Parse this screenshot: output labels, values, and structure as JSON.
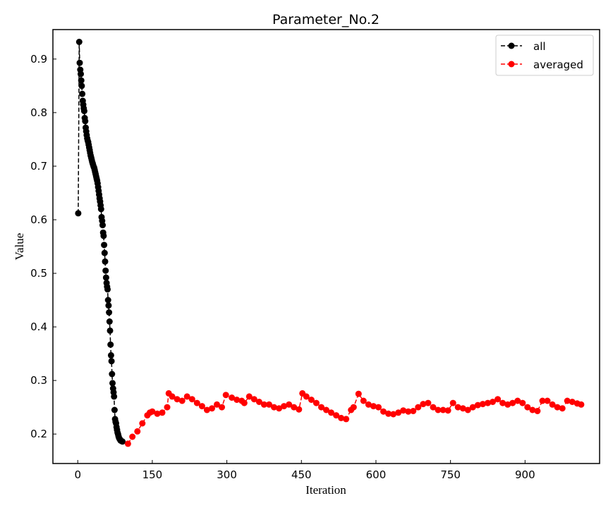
{
  "chart_data": {
    "type": "line",
    "title": "Parameter_No.2",
    "xlabel": "Iteration",
    "ylabel": "Value",
    "xlim": [
      -50,
      1050
    ],
    "ylim": [
      0.145,
      0.955
    ],
    "xticks": [
      0,
      150,
      300,
      450,
      600,
      750,
      900
    ],
    "yticks": [
      0.2,
      0.3,
      0.4,
      0.5,
      0.6,
      0.7,
      0.8,
      0.9
    ],
    "legend_position": "top-right",
    "grid": false,
    "series": [
      {
        "name": "all",
        "color": "#000000",
        "linestyle": "dashed",
        "marker": "circle",
        "points": [
          [
            1,
            0.612
          ],
          [
            3,
            0.932
          ],
          [
            4,
            0.893
          ],
          [
            5,
            0.88
          ],
          [
            6,
            0.872
          ],
          [
            7,
            0.86
          ],
          [
            8,
            0.85
          ],
          [
            9,
            0.835
          ],
          [
            10,
            0.822
          ],
          [
            11,
            0.815
          ],
          [
            12,
            0.808
          ],
          [
            13,
            0.803
          ],
          [
            14,
            0.79
          ],
          [
            15,
            0.784
          ],
          [
            16,
            0.772
          ],
          [
            17,
            0.765
          ],
          [
            18,
            0.758
          ],
          [
            19,
            0.752
          ],
          [
            20,
            0.748
          ],
          [
            21,
            0.745
          ],
          [
            22,
            0.74
          ],
          [
            23,
            0.735
          ],
          [
            24,
            0.73
          ],
          [
            25,
            0.725
          ],
          [
            26,
            0.72
          ],
          [
            27,
            0.716
          ],
          [
            28,
            0.712
          ],
          [
            29,
            0.708
          ],
          [
            30,
            0.705
          ],
          [
            31,
            0.702
          ],
          [
            32,
            0.699
          ],
          [
            33,
            0.697
          ],
          [
            34,
            0.693
          ],
          [
            35,
            0.689
          ],
          [
            36,
            0.685
          ],
          [
            37,
            0.681
          ],
          [
            38,
            0.677
          ],
          [
            39,
            0.673
          ],
          [
            40,
            0.668
          ],
          [
            41,
            0.661
          ],
          [
            42,
            0.654
          ],
          [
            43,
            0.647
          ],
          [
            44,
            0.64
          ],
          [
            45,
            0.634
          ],
          [
            46,
            0.627
          ],
          [
            47,
            0.62
          ],
          [
            48,
            0.605
          ],
          [
            49,
            0.598
          ],
          [
            50,
            0.59
          ],
          [
            51,
            0.576
          ],
          [
            52,
            0.57
          ],
          [
            53,
            0.553
          ],
          [
            54,
            0.538
          ],
          [
            55,
            0.522
          ],
          [
            56,
            0.505
          ],
          [
            57,
            0.492
          ],
          [
            58,
            0.482
          ],
          [
            59,
            0.475
          ],
          [
            60,
            0.47
          ],
          [
            61,
            0.45
          ],
          [
            62,
            0.44
          ],
          [
            63,
            0.427
          ],
          [
            64,
            0.41
          ],
          [
            65,
            0.393
          ],
          [
            66,
            0.367
          ],
          [
            67,
            0.347
          ],
          [
            68,
            0.336
          ],
          [
            69,
            0.312
          ],
          [
            70,
            0.295
          ],
          [
            71,
            0.285
          ],
          [
            72,
            0.278
          ],
          [
            73,
            0.27
          ],
          [
            74,
            0.245
          ],
          [
            75,
            0.228
          ],
          [
            76,
            0.223
          ],
          [
            77,
            0.22
          ],
          [
            78,
            0.213
          ],
          [
            79,
            0.208
          ],
          [
            80,
            0.203
          ],
          [
            81,
            0.2
          ],
          [
            82,
            0.196
          ],
          [
            83,
            0.193
          ],
          [
            84,
            0.191
          ],
          [
            85,
            0.19
          ],
          [
            86,
            0.188
          ],
          [
            88,
            0.187
          ],
          [
            90,
            0.186
          ]
        ]
      },
      {
        "name": "averaged",
        "color": "#ff0000",
        "linestyle": "dashed",
        "marker": "circle",
        "points": [
          [
            101,
            0.182
          ],
          [
            110,
            0.195
          ],
          [
            120,
            0.205
          ],
          [
            130,
            0.22
          ],
          [
            140,
            0.235
          ],
          [
            145,
            0.24
          ],
          [
            150,
            0.242
          ],
          [
            160,
            0.238
          ],
          [
            170,
            0.24
          ],
          [
            180,
            0.25
          ],
          [
            183,
            0.276
          ],
          [
            190,
            0.27
          ],
          [
            200,
            0.265
          ],
          [
            210,
            0.262
          ],
          [
            220,
            0.27
          ],
          [
            230,
            0.265
          ],
          [
            240,
            0.258
          ],
          [
            250,
            0.252
          ],
          [
            260,
            0.245
          ],
          [
            270,
            0.248
          ],
          [
            280,
            0.255
          ],
          [
            290,
            0.25
          ],
          [
            298,
            0.273
          ],
          [
            310,
            0.268
          ],
          [
            320,
            0.264
          ],
          [
            330,
            0.262
          ],
          [
            335,
            0.258
          ],
          [
            345,
            0.27
          ],
          [
            355,
            0.265
          ],
          [
            365,
            0.26
          ],
          [
            375,
            0.255
          ],
          [
            385,
            0.255
          ],
          [
            395,
            0.25
          ],
          [
            405,
            0.248
          ],
          [
            415,
            0.252
          ],
          [
            425,
            0.255
          ],
          [
            435,
            0.25
          ],
          [
            445,
            0.246
          ],
          [
            452,
            0.276
          ],
          [
            460,
            0.27
          ],
          [
            470,
            0.264
          ],
          [
            480,
            0.258
          ],
          [
            490,
            0.25
          ],
          [
            500,
            0.245
          ],
          [
            510,
            0.24
          ],
          [
            520,
            0.235
          ],
          [
            530,
            0.23
          ],
          [
            540,
            0.228
          ],
          [
            550,
            0.245
          ],
          [
            555,
            0.25
          ],
          [
            565,
            0.275
          ],
          [
            575,
            0.262
          ],
          [
            585,
            0.255
          ],
          [
            595,
            0.252
          ],
          [
            605,
            0.25
          ],
          [
            615,
            0.242
          ],
          [
            625,
            0.238
          ],
          [
            635,
            0.237
          ],
          [
            645,
            0.24
          ],
          [
            655,
            0.244
          ],
          [
            665,
            0.242
          ],
          [
            675,
            0.243
          ],
          [
            685,
            0.25
          ],
          [
            695,
            0.256
          ],
          [
            705,
            0.258
          ],
          [
            715,
            0.25
          ],
          [
            725,
            0.245
          ],
          [
            735,
            0.245
          ],
          [
            745,
            0.244
          ],
          [
            755,
            0.258
          ],
          [
            765,
            0.25
          ],
          [
            775,
            0.248
          ],
          [
            785,
            0.245
          ],
          [
            795,
            0.25
          ],
          [
            805,
            0.254
          ],
          [
            815,
            0.256
          ],
          [
            825,
            0.258
          ],
          [
            835,
            0.26
          ],
          [
            845,
            0.265
          ],
          [
            855,
            0.258
          ],
          [
            865,
            0.255
          ],
          [
            875,
            0.258
          ],
          [
            885,
            0.262
          ],
          [
            895,
            0.258
          ],
          [
            905,
            0.25
          ],
          [
            915,
            0.245
          ],
          [
            925,
            0.243
          ],
          [
            935,
            0.262
          ],
          [
            945,
            0.262
          ],
          [
            955,
            0.255
          ],
          [
            965,
            0.25
          ],
          [
            975,
            0.248
          ],
          [
            985,
            0.262
          ],
          [
            995,
            0.26
          ],
          [
            1005,
            0.257
          ],
          [
            1013,
            0.255
          ]
        ]
      }
    ]
  }
}
